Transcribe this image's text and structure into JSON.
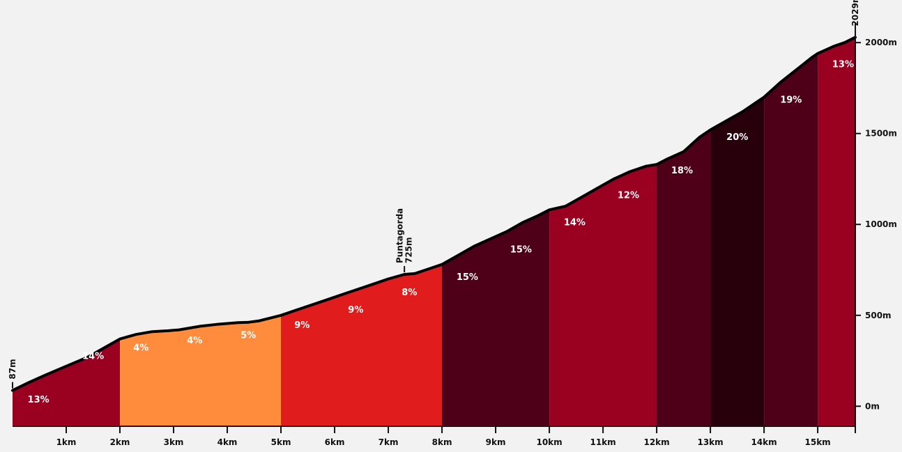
{
  "chart_data": {
    "type": "area",
    "title": "",
    "xlabel": "",
    "ylabel": "",
    "x_unit": "km",
    "y_unit": "m",
    "xlim": [
      0,
      15.7
    ],
    "ylim": [
      -110,
      2150
    ],
    "x_ticks": [
      {
        "value": 1,
        "label": "1km"
      },
      {
        "value": 2,
        "label": "2km"
      },
      {
        "value": 3,
        "label": "3km"
      },
      {
        "value": 4,
        "label": "4km"
      },
      {
        "value": 5,
        "label": "5km"
      },
      {
        "value": 6,
        "label": "6km"
      },
      {
        "value": 7,
        "label": "7km"
      },
      {
        "value": 8,
        "label": "8km"
      },
      {
        "value": 9,
        "label": "9km"
      },
      {
        "value": 10,
        "label": "10km"
      },
      {
        "value": 11,
        "label": "11km"
      },
      {
        "value": 12,
        "label": "12km"
      },
      {
        "value": 13,
        "label": "13km"
      },
      {
        "value": 14,
        "label": "14km"
      },
      {
        "value": 15,
        "label": "15km"
      }
    ],
    "y_ticks": [
      {
        "value": 0,
        "label": "0m"
      },
      {
        "value": 500,
        "label": "500m"
      },
      {
        "value": 1000,
        "label": "1000m"
      },
      {
        "value": 1500,
        "label": "1500m"
      },
      {
        "value": 2000,
        "label": "2000m"
      }
    ],
    "profile": {
      "x": [
        0,
        0.3,
        0.6,
        1.0,
        1.4,
        1.7,
        2.0,
        2.3,
        2.6,
        2.9,
        3.1,
        3.3,
        3.5,
        3.8,
        4.0,
        4.2,
        4.4,
        4.6,
        4.8,
        5.0,
        5.3,
        5.6,
        5.9,
        6.2,
        6.5,
        6.8,
        7.0,
        7.3,
        7.5,
        7.7,
        8.0,
        8.3,
        8.6,
        8.9,
        9.2,
        9.5,
        9.8,
        10.0,
        10.3,
        10.6,
        10.9,
        11.2,
        11.5,
        11.8,
        12.0,
        12.2,
        12.5,
        12.8,
        13.0,
        13.3,
        13.6,
        13.9,
        14.0,
        14.3,
        14.6,
        14.9,
        15.0,
        15.3,
        15.5,
        15.7
      ],
      "y": [
        87,
        130,
        170,
        220,
        270,
        320,
        370,
        395,
        410,
        415,
        420,
        430,
        440,
        450,
        455,
        460,
        462,
        470,
        485,
        500,
        530,
        560,
        590,
        620,
        650,
        680,
        700,
        725,
        730,
        750,
        780,
        830,
        880,
        920,
        960,
        1010,
        1050,
        1080,
        1100,
        1150,
        1200,
        1250,
        1290,
        1320,
        1330,
        1360,
        1400,
        1480,
        1520,
        1570,
        1620,
        1680,
        1700,
        1780,
        1850,
        1920,
        1940,
        1980,
        2000,
        2029
      ]
    },
    "segments": [
      {
        "start": 0,
        "end": 2,
        "grade": "13%",
        "color": "#9a0020"
      },
      {
        "start": 2,
        "end": 5,
        "grade": "4%",
        "color": "#ff8c3c"
      },
      {
        "start": 5,
        "end": 8,
        "grade": "9%",
        "color": "#e01c1c"
      },
      {
        "start": 8,
        "end": 10,
        "grade": "15%",
        "color": "#4e0018"
      },
      {
        "start": 10,
        "end": 12,
        "grade": "14%",
        "color": "#9a0020"
      },
      {
        "start": 12,
        "end": 13,
        "grade": "18%",
        "color": "#4e0018"
      },
      {
        "start": 13,
        "end": 14,
        "grade": "20%",
        "color": "#27000c"
      },
      {
        "start": 14,
        "end": 15,
        "grade": "19%",
        "color": "#4e0018"
      },
      {
        "start": 15,
        "end": 15.7,
        "grade": "13%",
        "color": "#9a0020"
      }
    ],
    "grade_labels": [
      {
        "text": "13%",
        "x": 0.28,
        "y": 20
      },
      {
        "text": "14%",
        "x": 1.3,
        "y": 260
      },
      {
        "text": "4%",
        "x": 2.25,
        "y": 305
      },
      {
        "text": "4%",
        "x": 3.25,
        "y": 345
      },
      {
        "text": "5%",
        "x": 4.25,
        "y": 375
      },
      {
        "text": "9%",
        "x": 5.25,
        "y": 430
      },
      {
        "text": "9%",
        "x": 6.25,
        "y": 515
      },
      {
        "text": "8%",
        "x": 7.25,
        "y": 610
      },
      {
        "text": "15%",
        "x": 8.27,
        "y": 695
      },
      {
        "text": "15%",
        "x": 9.27,
        "y": 845
      },
      {
        "text": "14%",
        "x": 10.27,
        "y": 995
      },
      {
        "text": "12%",
        "x": 11.27,
        "y": 1145
      },
      {
        "text": "18%",
        "x": 12.27,
        "y": 1280
      },
      {
        "text": "20%",
        "x": 13.3,
        "y": 1465
      },
      {
        "text": "19%",
        "x": 14.3,
        "y": 1670
      },
      {
        "text": "13%",
        "x": 15.27,
        "y": 1865
      }
    ],
    "annotations": [
      {
        "lines": [
          "87m"
        ],
        "x": 0,
        "y": 87
      },
      {
        "lines": [
          "Puntagorda",
          "725m"
        ],
        "x": 7.3,
        "y": 725
      },
      {
        "lines": [
          "2029m"
        ],
        "x": 15.7,
        "y": 2029
      }
    ],
    "line_color": "#000000",
    "axis_color": "#111111",
    "background": "#f2f2f2"
  }
}
